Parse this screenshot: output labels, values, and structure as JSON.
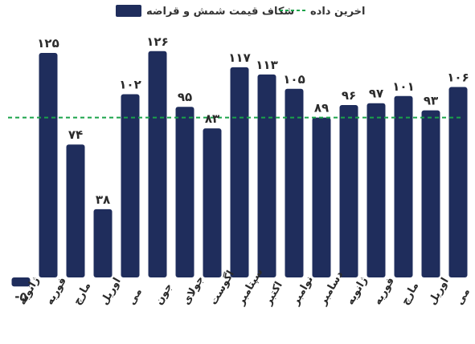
{
  "legend": {
    "bar_series_label": "شکاف قیمت شمش و قراضه",
    "line_series_label": "اخرین داده"
  },
  "colors": {
    "bar": "#1f2d5c",
    "reference_line": "#1aa34a",
    "text": "#2b2b2b"
  },
  "chart_data": {
    "type": "bar",
    "categories": [
      "ژانویه",
      "فوریه",
      "مارچ",
      "اوریل",
      "می",
      "جون",
      "جولای",
      "اگوست",
      "سپتامبر",
      "اکتبر",
      "نوامبر",
      "دسامبر",
      "ژانویه",
      "فوریه",
      "مارچ",
      "اوریل",
      "می"
    ],
    "value_labels": [
      "-۵",
      "۱۲۵",
      "۷۴",
      "۳۸",
      "۱۰۲",
      "۱۲۶",
      "۹۵",
      "۸۳",
      "۱۱۷",
      "۱۱۳",
      "۱۰۵",
      "۸۹",
      "۹۶",
      "۹۷",
      "۱۰۱",
      "۹۳",
      "۱۰۶"
    ],
    "series": [
      {
        "name": "شکاف قیمت شمش و قراضه",
        "values": [
          -5,
          125,
          74,
          38,
          102,
          126,
          95,
          83,
          117,
          113,
          105,
          89,
          96,
          97,
          101,
          93,
          106
        ]
      }
    ],
    "reference_line": {
      "name": "اخرین داده",
      "value": 89
    },
    "ylim": [
      -12,
      130
    ],
    "legend_position": "top",
    "grid": false
  }
}
